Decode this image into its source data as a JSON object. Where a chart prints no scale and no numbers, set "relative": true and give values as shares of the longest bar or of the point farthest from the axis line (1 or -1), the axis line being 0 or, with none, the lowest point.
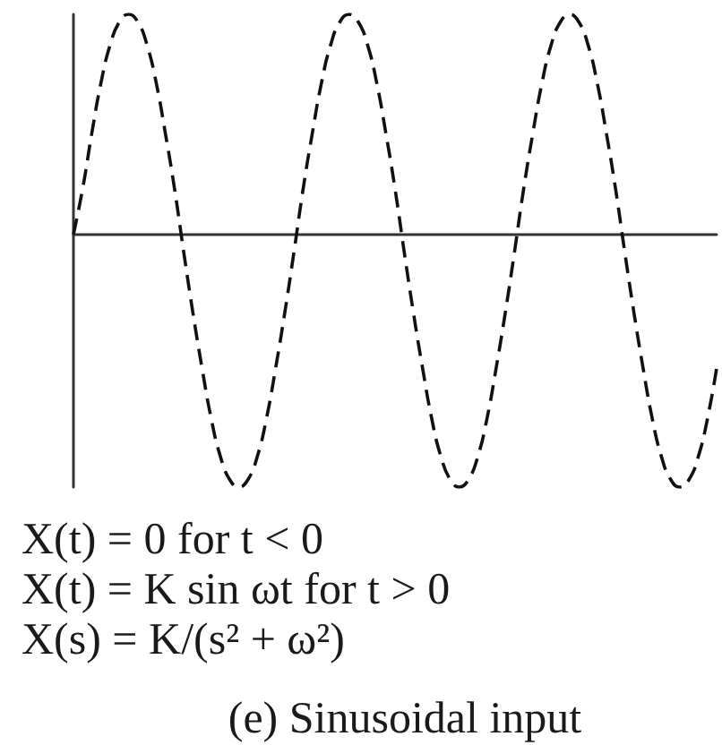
{
  "chart_data": {
    "type": "line",
    "relative": true,
    "title": "(e) Sinusoidal input",
    "annotations": [
      "X(t) = 0 for t < 0",
      "X(t) = K sin ωt for t > 0",
      "X(s) = K/(s² + ω²)"
    ],
    "categories": [
      null,
      null,
      null,
      null,
      null,
      null,
      null,
      null,
      null,
      null,
      null,
      null,
      null,
      null,
      null,
      null,
      null,
      null,
      null,
      null,
      null,
      null,
      null,
      null,
      null,
      null,
      null,
      null,
      null,
      null,
      null,
      null,
      null,
      null,
      null,
      null,
      null,
      null,
      null,
      null,
      null,
      null,
      null,
      null,
      null,
      null,
      null,
      null,
      null,
      null,
      null,
      null,
      null,
      null,
      null,
      null,
      null,
      null,
      null,
      null,
      null,
      null,
      null,
      null,
      null,
      null,
      null,
      null,
      null,
      null,
      null
    ],
    "values": [
      0,
      0.18,
      0.4,
      0.6,
      0.75,
      0.84,
      0.87,
      0.84,
      0.75,
      0.6,
      0.4,
      0.18,
      -0.07,
      -0.31,
      -0.53,
      -0.73,
      -0.88,
      -0.97,
      -1,
      -0.97,
      -0.88,
      -0.73,
      -0.53,
      -0.31,
      -0.07,
      0.18,
      0.4,
      0.6,
      0.75,
      0.84,
      0.87,
      0.84,
      0.75,
      0.6,
      0.4,
      0.18,
      -0.07,
      -0.31,
      -0.53,
      -0.73,
      -0.88,
      -0.97,
      -1,
      -0.97,
      -0.88,
      -0.73,
      -0.53,
      -0.31,
      -0.07,
      0.18,
      0.4,
      0.6,
      0.75,
      0.84,
      0.87,
      0.84,
      0.75,
      0.6,
      0.4,
      0.18,
      -0.07,
      -0.31,
      -0.53,
      -0.73,
      -0.88,
      -0.97,
      -1,
      -0.97,
      -0.88,
      -0.73,
      -0.53
    ],
    "color": "#111111",
    "line_style": "dashed"
  }
}
